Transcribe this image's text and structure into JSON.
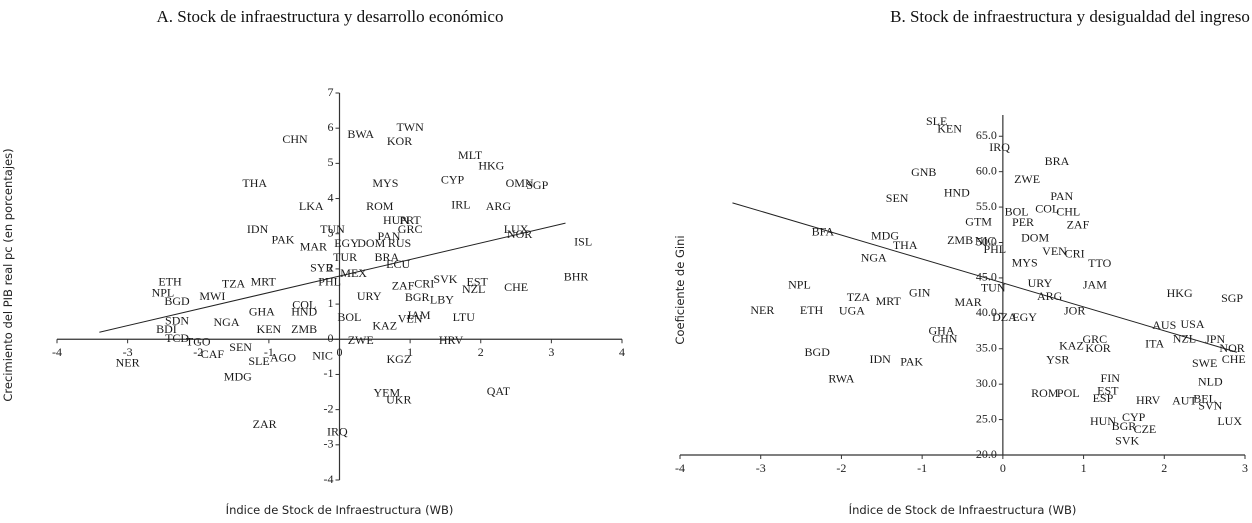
{
  "chart_data": [
    {
      "type": "scatter",
      "title": "A. Stock de infraestructura y desarrollo económico",
      "x_label": "Índice de Stock de Infraestructura (WB)",
      "y_label": "Crecimiento del PIB real pc (en porcentajes)",
      "xlim": [
        -4,
        4
      ],
      "ylim": [
        -4,
        7
      ],
      "xticks": [
        -4,
        -3,
        -2,
        -1,
        0,
        1,
        2,
        3,
        4
      ],
      "yticks": [
        -4,
        -3,
        -2,
        -1,
        0,
        1,
        2,
        3,
        4,
        5,
        6,
        7
      ],
      "labels": [
        "CHN",
        "BWA",
        "TWN",
        "KOR",
        "MLT",
        "HKG",
        "THA",
        "MYS",
        "CYP",
        "OMN",
        "SGP",
        "LKA",
        "ROM",
        "IRL",
        "ARG",
        "PRT",
        "HUN",
        "GRC",
        "LUX",
        "IDN",
        "TUN",
        "PAK",
        "NOR",
        "ISL",
        "MAR",
        "EGY",
        "DOM",
        "PAN",
        "RUS",
        "TUR",
        "BRA",
        "ECU",
        "SYR",
        "MEX",
        "ETH",
        "TZA",
        "MRT",
        "NPL",
        "MWI",
        "BGD",
        "PHL",
        "ZAF",
        "CRI",
        "SVK",
        "EST",
        "NZL",
        "CHE",
        "BHR",
        "BGR",
        "LBY",
        "URY",
        "COL",
        "HND",
        "GHA",
        "BOL",
        "KEN",
        "ZMB",
        "NGA",
        "ZWE",
        "KAZ",
        "JAM",
        "VEN",
        "LTU",
        "HRV",
        "NER",
        "CAF",
        "SLE",
        "AGO",
        "NIC",
        "KGZ",
        "MDG",
        "YEM",
        "UKR",
        "QAT",
        "ZAR",
        "IRQ",
        "TGO",
        "SEN",
        "SDN",
        "BDI",
        "TCD"
      ],
      "x": [
        -0.63,
        0.3,
        1.0,
        0.85,
        1.85,
        2.15,
        -1.2,
        0.65,
        1.6,
        2.55,
        2.8,
        -0.4,
        0.57,
        1.72,
        2.25,
        1.0,
        0.8,
        1.0,
        2.5,
        -1.16,
        -0.1,
        -0.8,
        2.55,
        3.45,
        -0.37,
        0.1,
        0.45,
        0.7,
        0.85,
        0.08,
        0.67,
        0.83,
        -0.25,
        0.2,
        -2.4,
        -1.5,
        -1.08,
        -2.5,
        -1.8,
        -2.3,
        -0.14,
        0.9,
        1.2,
        1.5,
        1.95,
        1.9,
        2.5,
        3.35,
        1.1,
        1.45,
        0.42,
        -0.5,
        -0.5,
        -1.1,
        0.14,
        -1.0,
        -0.5,
        -1.6,
        0.3,
        0.64,
        1.12,
        1.0,
        1.76,
        1.58,
        -3.0,
        -1.8,
        -1.14,
        -0.8,
        -0.24,
        0.84,
        -1.44,
        0.67,
        0.84,
        2.25,
        -1.06,
        -0.03,
        -2.0,
        -1.4,
        -2.3,
        -2.45,
        -2.3
      ],
      "y": [
        5.65,
        5.8,
        6.0,
        5.6,
        5.2,
        4.9,
        4.4,
        4.4,
        4.5,
        4.4,
        4.35,
        3.75,
        3.75,
        3.8,
        3.75,
        3.35,
        3.35,
        3.1,
        3.1,
        3.1,
        3.1,
        2.8,
        2.95,
        2.75,
        2.6,
        2.7,
        2.7,
        2.9,
        2.7,
        2.3,
        2.3,
        2.1,
        2.0,
        1.85,
        1.6,
        1.55,
        1.6,
        1.3,
        1.2,
        1.05,
        1.6,
        1.5,
        1.55,
        1.68,
        1.6,
        1.4,
        1.45,
        1.75,
        1.17,
        1.1,
        1.2,
        0.95,
        0.75,
        0.75,
        0.6,
        0.25,
        0.25,
        0.45,
        -0.05,
        0.35,
        0.65,
        0.55,
        0.6,
        -0.05,
        -0.7,
        -0.45,
        -0.65,
        -0.55,
        -0.5,
        -0.6,
        -1.1,
        -1.55,
        -1.75,
        -1.5,
        -2.45,
        -2.65,
        -0.1,
        -0.25,
        0.5,
        0.25,
        0.0
      ],
      "trend_line": {
        "x": [
          -3.4,
          3.2
        ],
        "y": [
          0.2,
          3.3
        ]
      }
    },
    {
      "type": "scatter",
      "title": "B. Stock de infraestructura y desigualdad del ingreso",
      "x_label": "Índice de Stock de Infraestructura (WB)",
      "y_label": "Coeficiente de Gini",
      "xlim": [
        -4,
        3
      ],
      "ylim": [
        20,
        68
      ],
      "xticks": [
        -4,
        -3,
        -2,
        -1,
        0,
        1,
        2,
        3
      ],
      "yticks": [
        {
          "value": 20,
          "label": "20.0"
        },
        {
          "value": 25,
          "label": "25.0"
        },
        {
          "value": 30,
          "label": "30.0"
        },
        {
          "value": 35,
          "label": "35.0"
        },
        {
          "value": 40,
          "label": "40.0"
        },
        {
          "value": 45,
          "label": "45.0"
        },
        {
          "value": 50,
          "label": "50.0"
        },
        {
          "value": 55,
          "label": "55.0"
        },
        {
          "value": 60,
          "label": "60.0"
        },
        {
          "value": 65,
          "label": "65.0"
        }
      ],
      "labels": [
        "SLE",
        "KEN",
        "IRQ",
        "GNB",
        "BRA",
        "ZWE",
        "SEN",
        "HND",
        "PAN",
        "COL",
        "CHL",
        "BOL",
        "PER",
        "GTM",
        "ZAF",
        "BFA",
        "MDG",
        "THA",
        "ZMB",
        "NIC",
        "DOM",
        "NGA",
        "VEN",
        "CRI",
        "PHL",
        "MYS",
        "TTO",
        "URY",
        "JAM",
        "NPL",
        "TUN",
        "HKG",
        "SGP",
        "GIN",
        "ARG",
        "NER",
        "ETH",
        "UGA",
        "TZA",
        "MRT",
        "MAR",
        "JOR",
        "DZA",
        "EGY",
        "AUS",
        "USA",
        "GHA",
        "CHN",
        "NZL",
        "JPN",
        "NOR",
        "ITA",
        "KAZ",
        "KOR",
        "CHE",
        "SWE",
        "YSR",
        "BGD",
        "IDN",
        "PAK",
        "RWA",
        "NLD",
        "FIN",
        "EST",
        "BEL",
        "AUT",
        "SVN",
        "ROM",
        "POL",
        "ESP",
        "HRV",
        "HUN",
        "CYP",
        "BGR",
        "CZE",
        "LUX",
        "SVK",
        "GRC"
      ],
      "x": [
        -0.82,
        -0.66,
        -0.04,
        -0.98,
        0.67,
        0.3,
        -1.31,
        -0.57,
        0.73,
        0.55,
        0.81,
        0.17,
        0.25,
        -0.3,
        0.93,
        -2.23,
        -1.46,
        -1.21,
        -0.53,
        -0.22,
        0.4,
        -1.6,
        0.64,
        0.89,
        -0.1,
        0.27,
        1.2,
        0.46,
        1.14,
        -2.52,
        -0.12,
        2.19,
        2.84,
        -1.03,
        0.58,
        -2.98,
        -2.37,
        -1.87,
        -1.79,
        -1.42,
        -0.43,
        0.89,
        0.02,
        0.27,
        2.0,
        2.35,
        -0.76,
        -0.72,
        2.25,
        2.63,
        2.84,
        1.88,
        0.85,
        1.18,
        2.86,
        2.5,
        0.68,
        -2.3,
        -1.52,
        -1.13,
        -2.0,
        2.57,
        1.33,
        1.3,
        2.5,
        2.25,
        2.57,
        0.52,
        0.81,
        1.24,
        1.8,
        1.24,
        1.62,
        1.5,
        1.76,
        2.81,
        1.54,
        1.14
      ],
      "y": [
        67,
        65.9,
        63.3,
        59.8,
        61.3,
        58.8,
        56.1,
        56.9,
        56.4,
        54.6,
        54.2,
        54.2,
        52.7,
        52.8,
        52.4,
        51.4,
        50.8,
        49.5,
        50.2,
        50.1,
        50.5,
        47.7,
        48.6,
        48.3,
        48.9,
        47.0,
        46.9,
        44.1,
        43.9,
        43.9,
        43.5,
        42.7,
        42.0,
        42.8,
        42.3,
        40.3,
        40.3,
        40.2,
        42.1,
        41.6,
        41.4,
        40.2,
        39.3,
        39.3,
        38.2,
        38.3,
        37.4,
        36.3,
        36.3,
        36.2,
        34.9,
        35.6,
        35.3,
        34.9,
        33.4,
        32.8,
        33.3,
        34.4,
        33.4,
        33.0,
        30.6,
        30.2,
        30.7,
        28.9,
        27.8,
        27.5,
        26.8,
        28.6,
        28.6,
        27.9,
        27.6,
        24.6,
        25.2,
        23.9,
        23.5,
        24.6,
        21.9,
        36.2
      ],
      "trend_line": {
        "x": [
          -3.35,
          2.9
        ],
        "y": [
          55.6,
          34.5
        ]
      }
    }
  ]
}
